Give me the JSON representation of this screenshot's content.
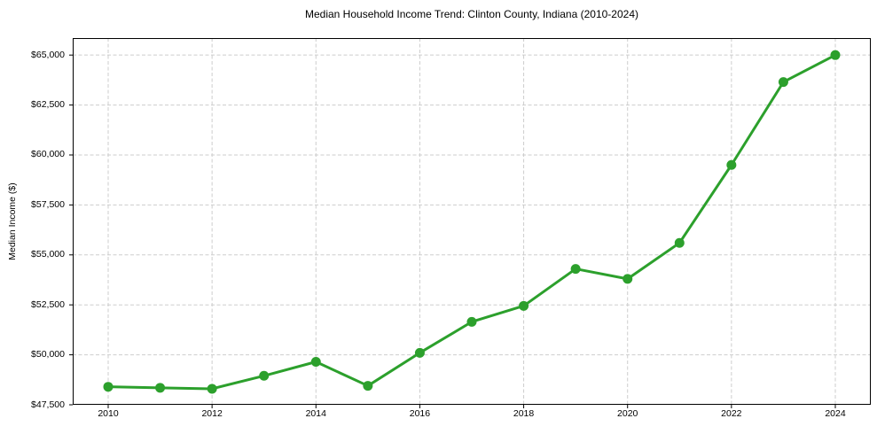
{
  "figure": {
    "background": "#ffffff"
  },
  "chart_data": {
    "type": "line",
    "title": "Median Household Income Trend: Clinton County, Indiana (2010-2024)",
    "xlabel": "",
    "ylabel": "Median Income ($)",
    "x": [
      2010,
      2011,
      2012,
      2013,
      2014,
      2015,
      2016,
      2017,
      2018,
      2019,
      2020,
      2021,
      2022,
      2023,
      2024
    ],
    "series": [
      {
        "name": "Median Household Income",
        "values": [
          48400,
          48350,
          48300,
          48950,
          49650,
          48450,
          50100,
          51650,
          52450,
          54300,
          53800,
          55600,
          59500,
          63650,
          65000
        ]
      }
    ],
    "x_ticks": [
      2010,
      2012,
      2014,
      2016,
      2018,
      2020,
      2022,
      2024
    ],
    "x_tick_labels": [
      "2010",
      "2012",
      "2014",
      "2016",
      "2018",
      "2020",
      "2022",
      "2024"
    ],
    "y_ticks": [
      47500,
      50000,
      52500,
      55000,
      57500,
      60000,
      62500,
      65000
    ],
    "y_tick_labels": [
      "$47,500",
      "$50,000",
      "$52,500",
      "$55,000",
      "$57,500",
      "$60,000",
      "$62,500",
      "$65,000"
    ],
    "xlim": [
      2010,
      2024
    ],
    "ylim": [
      47500,
      65850
    ],
    "grid": true,
    "legend": "none",
    "style": {
      "line_color": "#2ca02c",
      "line_width": 3,
      "marker": "circle",
      "marker_radius": 5.5,
      "grid_color": "#cdcdcd",
      "spine_color": "#000000",
      "tick_color": "#000000"
    }
  }
}
